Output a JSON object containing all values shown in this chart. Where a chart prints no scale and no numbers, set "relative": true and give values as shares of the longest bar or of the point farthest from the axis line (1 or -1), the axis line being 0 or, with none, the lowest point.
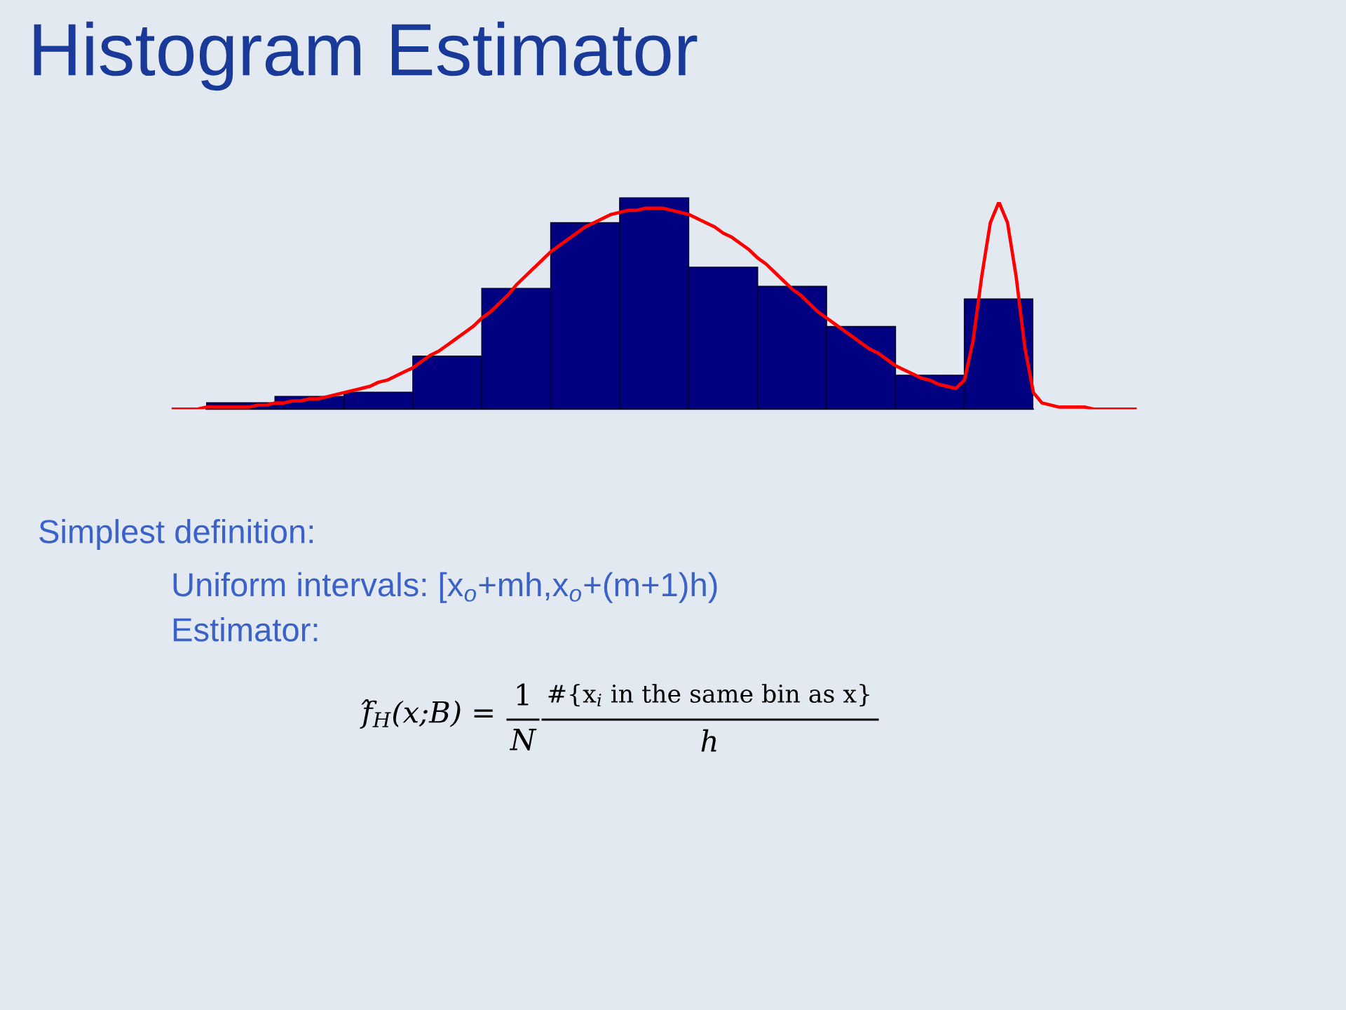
{
  "chart_data": [
    {
      "type": "bar",
      "title": "Histogram Estimator",
      "relative": true,
      "color": "#000080",
      "categories": [
        null,
        null,
        null,
        null,
        null,
        null,
        null,
        null,
        null,
        null,
        null,
        null
      ],
      "values": [
        0.03,
        0.06,
        0.08,
        0.25,
        0.57,
        0.88,
        1,
        0.67,
        0.58,
        0.39,
        0.16,
        0.52
      ],
      "annotations": [
        "Simplest definition:",
        "Uniform intervals: [x$_{o}$+mh,x$_{o}$+(m+1)h)",
        "Estimator:",
        "f̂$_{H}$(x;B) =",
        "1",
        "N",
        "#{x$_{i}$ in the same bin as x}",
        "h"
      ]
    },
    {
      "type": "line",
      "relative": true,
      "color": "#ff0000",
      "categories": [
        null,
        null,
        null,
        null,
        null,
        null,
        null,
        null,
        null,
        null,
        null,
        null,
        null,
        null,
        null,
        null,
        null,
        null,
        null,
        null,
        null,
        null,
        null,
        null,
        null,
        null,
        null,
        null,
        null,
        null,
        null,
        null,
        null,
        null,
        null,
        null,
        null,
        null,
        null,
        null,
        null,
        null,
        null,
        null,
        null,
        null,
        null,
        null,
        null,
        null,
        null,
        null,
        null,
        null,
        null,
        null,
        null,
        null,
        null,
        null,
        null,
        null,
        null,
        null,
        null,
        null,
        null,
        null,
        null,
        null,
        null,
        null,
        null,
        null,
        null,
        null,
        null,
        null,
        null,
        null,
        null,
        null,
        null,
        null,
        null,
        null,
        null,
        null,
        null,
        null,
        null,
        null,
        null,
        null,
        null,
        null,
        null,
        null,
        null,
        null,
        null,
        null,
        null,
        null,
        null,
        null,
        null,
        null,
        null,
        null,
        null,
        null,
        null
      ],
      "values": [
        0,
        0,
        0,
        0,
        0.01,
        0.01,
        0.01,
        0.01,
        0.01,
        0.01,
        0.02,
        0.02,
        0.03,
        0.03,
        0.04,
        0.04,
        0.05,
        0.05,
        0.06,
        0.07,
        0.08,
        0.09,
        0.1,
        0.11,
        0.13,
        0.14,
        0.16,
        0.18,
        0.2,
        0.23,
        0.26,
        0.28,
        0.31,
        0.34,
        0.37,
        0.4,
        0.44,
        0.47,
        0.51,
        0.55,
        0.6,
        0.64,
        0.68,
        0.72,
        0.76,
        0.79,
        0.82,
        0.85,
        0.88,
        0.9,
        0.92,
        0.94,
        0.95,
        0.96,
        0.96,
        0.97,
        0.97,
        0.97,
        0.96,
        0.95,
        0.94,
        0.92,
        0.9,
        0.88,
        0.85,
        0.83,
        0.8,
        0.77,
        0.73,
        0.7,
        0.66,
        0.62,
        0.58,
        0.55,
        0.51,
        0.47,
        0.44,
        0.41,
        0.38,
        0.35,
        0.32,
        0.29,
        0.27,
        0.24,
        0.21,
        0.19,
        0.17,
        0.15,
        0.14,
        0.12,
        0.11,
        0.1,
        0.14,
        0.33,
        0.64,
        0.9,
        1,
        0.9,
        0.64,
        0.3,
        0.08,
        0.03,
        0.02,
        0.01,
        0.01,
        0.01,
        0.01,
        0,
        0,
        0,
        0,
        0,
        0
      ]
    }
  ]
}
